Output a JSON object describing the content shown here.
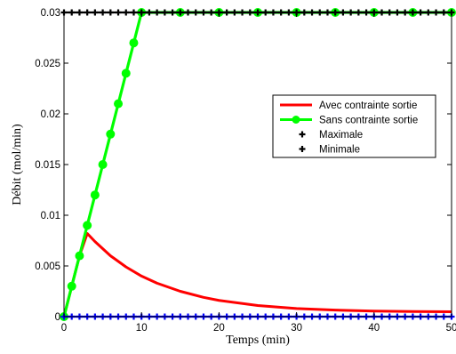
{
  "chart_data": {
    "type": "line",
    "title": "",
    "xlabel": "Temps (min)",
    "ylabel": "Débit (mol/min)",
    "xlim": [
      0,
      50
    ],
    "ylim": [
      0,
      0.03
    ],
    "x_ticks": [
      "0",
      "10",
      "20",
      "30",
      "40",
      "50"
    ],
    "y_ticks": [
      "0",
      "0.005",
      "0.01",
      "0.015",
      "0.02",
      "0.025",
      "0.03"
    ],
    "grid": false,
    "legend_position": "right",
    "series": [
      {
        "name": "Avec contrainte sortie",
        "color": "#ff0000",
        "marker": "none",
        "x": [
          0,
          1,
          2,
          3,
          4,
          5,
          6,
          8,
          10,
          12,
          15,
          18,
          20,
          25,
          30,
          35,
          40,
          45,
          50
        ],
        "y": [
          0,
          0.003,
          0.006,
          0.0082,
          0.0074,
          0.0067,
          0.006,
          0.0049,
          0.004,
          0.0033,
          0.0025,
          0.0019,
          0.0016,
          0.0011,
          0.0008,
          0.00065,
          0.00055,
          0.0005,
          0.00048
        ]
      },
      {
        "name": "Sans contrainte sortie",
        "color": "#00ff00",
        "marker": "circle",
        "x": [
          0,
          1,
          2,
          3,
          4,
          5,
          6,
          7,
          8,
          9,
          10,
          15,
          20,
          25,
          30,
          35,
          40,
          45,
          50
        ],
        "y": [
          0,
          0.003,
          0.006,
          0.009,
          0.012,
          0.015,
          0.018,
          0.021,
          0.024,
          0.027,
          0.03,
          0.03,
          0.03,
          0.03,
          0.03,
          0.03,
          0.03,
          0.03,
          0.03
        ]
      },
      {
        "name": "Maximale",
        "color": "#000000",
        "marker": "plus",
        "x": [
          0,
          1,
          2,
          3,
          4,
          5,
          6,
          7,
          8,
          9,
          10,
          11,
          12,
          13,
          14,
          15,
          16,
          17,
          18,
          19,
          20,
          21,
          22,
          23,
          24,
          25,
          26,
          27,
          28,
          29,
          30,
          31,
          32,
          33,
          34,
          35,
          36,
          37,
          38,
          39,
          40,
          41,
          42,
          43,
          44,
          45,
          46,
          47,
          48,
          49,
          50
        ],
        "y": [
          0.03,
          0.03,
          0.03,
          0.03,
          0.03,
          0.03,
          0.03,
          0.03,
          0.03,
          0.03,
          0.03,
          0.03,
          0.03,
          0.03,
          0.03,
          0.03,
          0.03,
          0.03,
          0.03,
          0.03,
          0.03,
          0.03,
          0.03,
          0.03,
          0.03,
          0.03,
          0.03,
          0.03,
          0.03,
          0.03,
          0.03,
          0.03,
          0.03,
          0.03,
          0.03,
          0.03,
          0.03,
          0.03,
          0.03,
          0.03,
          0.03,
          0.03,
          0.03,
          0.03,
          0.03,
          0.03,
          0.03,
          0.03,
          0.03,
          0.03,
          0.03
        ]
      },
      {
        "name": "Minimale",
        "color": "#0000ff",
        "legend_color": "#000000",
        "marker": "plus",
        "x": [
          0,
          1,
          2,
          3,
          4,
          5,
          6,
          7,
          8,
          9,
          10,
          11,
          12,
          13,
          14,
          15,
          16,
          17,
          18,
          19,
          20,
          21,
          22,
          23,
          24,
          25,
          26,
          27,
          28,
          29,
          30,
          31,
          32,
          33,
          34,
          35,
          36,
          37,
          38,
          39,
          40,
          41,
          42,
          43,
          44,
          45,
          46,
          47,
          48,
          49,
          50
        ],
        "y": [
          0,
          0,
          0,
          0,
          0,
          0,
          0,
          0,
          0,
          0,
          0,
          0,
          0,
          0,
          0,
          0,
          0,
          0,
          0,
          0,
          0,
          0,
          0,
          0,
          0,
          0,
          0,
          0,
          0,
          0,
          0,
          0,
          0,
          0,
          0,
          0,
          0,
          0,
          0,
          0,
          0,
          0,
          0,
          0,
          0,
          0,
          0,
          0,
          0,
          0,
          0
        ]
      }
    ]
  }
}
